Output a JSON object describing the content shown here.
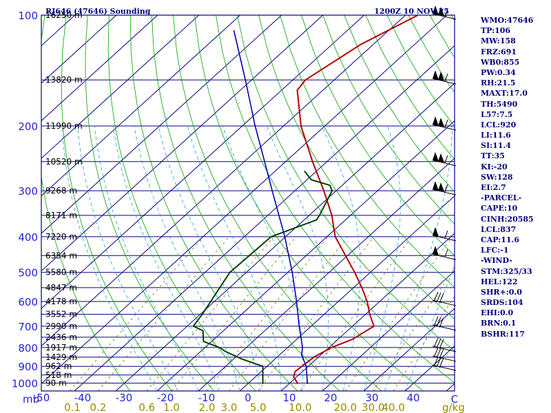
{
  "header": {
    "station": "RJ646 (47646) Sounding",
    "time": "1200Z 10 NOV 25"
  },
  "colors": {
    "frame": "#000080",
    "temperature": "#b30000",
    "dewpoint": "#004000",
    "parcel": "#0000b0",
    "isotherm": "#000080",
    "dry_adiabat": "#00a000",
    "moist_adiabat": "#1ea0d2",
    "mixing_ratio": "#6b6b00",
    "tick_text": "#2222dd",
    "mixing_text": "#9a8a00",
    "wind": "#000000",
    "side_text": "#000080"
  },
  "side_panel": [
    "WMO:47646",
    "TP:106",
    "MW:158",
    "FRZ:691",
    "WB0:855",
    "PW:0.34",
    "RH:21.5",
    "MAXT:17.0",
    "TH:5490",
    "L57:7.5",
    "LCL:920",
    "LI:11.6",
    "SI:11.4",
    "TT:35",
    "KI:-20",
    "SW:128",
    "EI:2.7",
    "-PARCEL-",
    "CAPE:10",
    "CINH:20585",
    "LCL:837",
    "CAP:11.6",
    "LFC:-1",
    "-WIND-",
    "STM:325/33",
    "HEL:122",
    "SHR+:0.0",
    "SRDS:104",
    "EHI:0.0",
    "BRN:0.1",
    "BSHR:117"
  ],
  "chart_data": {
    "type": "line",
    "title": "RJ646 (47646) Sounding",
    "subtitle": "1200Z 10 NOV 25",
    "x_unit_label": "C",
    "y_unit_label": "mb",
    "pressure_ticks": [
      100,
      200,
      300,
      400,
      500,
      600,
      700,
      800,
      900,
      1000
    ],
    "pressure_tick_labels": [
      "100",
      "200",
      "300",
      "400",
      "500",
      "600",
      "700",
      "800",
      "900",
      "1000"
    ],
    "temperature_ticks": [
      -50,
      -40,
      -30,
      -20,
      -10,
      0,
      10,
      20,
      30,
      40
    ],
    "temperature_tick_labels": [
      "-50",
      "-40",
      "-30",
      "-20",
      "-10",
      "0",
      "10",
      "20",
      "30",
      "40"
    ],
    "xlim": [
      -50,
      50
    ],
    "ylim": [
      1050,
      100
    ],
    "mixing_ratio_unit": "g/kg",
    "mixing_ratio_labels": [
      "0.1",
      "0.2",
      "0.6",
      "1.0",
      "2.0",
      "3.0",
      "5.0",
      "10.0",
      "20.0",
      "30.0",
      "40.0"
    ],
    "mixing_ratio_values": [
      0.1,
      0.2,
      0.6,
      1.0,
      2.0,
      3.0,
      5.0,
      10.0,
      20.0,
      30.0,
      40.0
    ],
    "heights": [
      {
        "p": 100,
        "label": "16250 m"
      },
      {
        "p": 150,
        "label": "13820 m"
      },
      {
        "p": 200,
        "label": "11990 m"
      },
      {
        "p": 250,
        "label": "10520 m"
      },
      {
        "p": 300,
        "label": "9268 m"
      },
      {
        "p": 350,
        "label": "8171 m"
      },
      {
        "p": 400,
        "label": "7220 m"
      },
      {
        "p": 450,
        "label": "6354 m"
      },
      {
        "p": 500,
        "label": "5580 m"
      },
      {
        "p": 550,
        "label": "4847 m"
      },
      {
        "p": 600,
        "label": "4178 m"
      },
      {
        "p": 650,
        "label": "3552 m"
      },
      {
        "p": 700,
        "label": "2990 m"
      },
      {
        "p": 750,
        "label": "2436 m"
      },
      {
        "p": 800,
        "label": "1917 m"
      },
      {
        "p": 850,
        "label": "1429 m"
      },
      {
        "p": 900,
        "label": "962 m"
      },
      {
        "p": 950,
        "label": "518 m"
      },
      {
        "p": 1000,
        "label": "90 m"
      }
    ],
    "series": [
      {
        "key": "temperature",
        "points": [
          [
            1005,
            12.2
          ],
          [
            990,
            11.2
          ],
          [
            960,
            9.2
          ],
          [
            930,
            8.2
          ],
          [
            850,
            8.9
          ],
          [
            800,
            10.6
          ],
          [
            760,
            13.5
          ],
          [
            700,
            15.2
          ],
          [
            650,
            11.0
          ],
          [
            600,
            7.0
          ],
          [
            550,
            2.0
          ],
          [
            500,
            -3.8
          ],
          [
            450,
            -10.5
          ],
          [
            400,
            -18.0
          ],
          [
            350,
            -24.5
          ],
          [
            300,
            -33.0
          ],
          [
            250,
            -43.5
          ],
          [
            200,
            -55.8
          ],
          [
            160,
            -66.2
          ],
          [
            150,
            -67.0
          ],
          [
            120,
            -63.0
          ],
          [
            100,
            -57.0
          ]
        ]
      },
      {
        "key": "dewpoint",
        "points": [
          [
            1005,
            3.7
          ],
          [
            900,
            -1.0
          ],
          [
            860,
            -8.0
          ],
          [
            820,
            -14.0
          ],
          [
            800,
            -16.5
          ],
          [
            770,
            -22.0
          ],
          [
            720,
            -25.0
          ],
          [
            700,
            -28.5
          ],
          [
            650,
            -29.5
          ],
          [
            500,
            -34.0
          ],
          [
            400,
            -33.5
          ],
          [
            360,
            -27.0
          ],
          [
            350,
            -27.5
          ],
          [
            300,
            -31.0
          ],
          [
            290,
            -33.0
          ],
          [
            280,
            -39.0
          ],
          [
            265,
            -43.0
          ]
        ]
      },
      {
        "key": "parcel",
        "points": [
          [
            1005,
            14.5
          ],
          [
            900,
            9.5
          ],
          [
            837,
            5.3
          ],
          [
            800,
            3.6
          ],
          [
            700,
            -2.9
          ],
          [
            600,
            -10.1
          ],
          [
            500,
            -18.9
          ],
          [
            400,
            -30.2
          ],
          [
            300,
            -45.5
          ],
          [
            250,
            -55.1
          ],
          [
            200,
            -66.9
          ],
          [
            150,
            -81.5
          ],
          [
            110,
            -97.5
          ]
        ]
      }
    ],
    "wind_barb_pressures": [
      100,
      150,
      200,
      250,
      300,
      400,
      450,
      600,
      700,
      800,
      850,
      900
    ],
    "grid": true,
    "legend": "none"
  }
}
